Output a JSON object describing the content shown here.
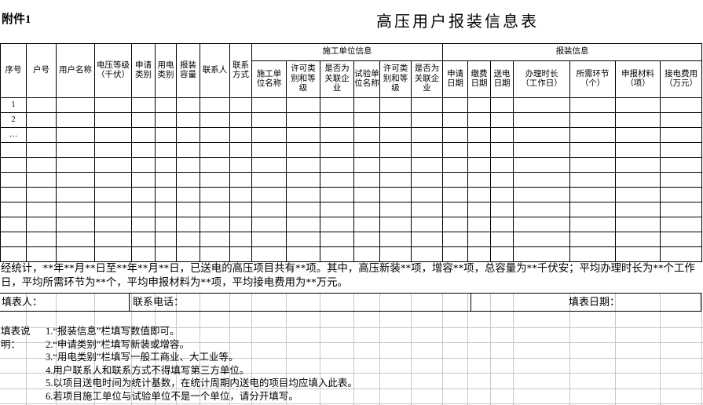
{
  "page": {
    "attachment_label": "附件1",
    "title": "高压用户报装信息表"
  },
  "table": {
    "merged_columns": [
      "序号",
      "户号",
      "用户名称",
      "电压等级\n（千伏）",
      "申请\n类别",
      "用电\n类别",
      "报装\n容量",
      "联系人",
      "联系\n方式"
    ],
    "construction_group": {
      "label": "施工单位信息",
      "columns": [
        "施工单\n位名称",
        "许可类\n别和等\n级",
        "是否为\n关联企\n业",
        "试验单\n位名称",
        "许可类\n别和等\n级",
        "是否为\n关联企\n业"
      ]
    },
    "installation_group": {
      "label": "报装信息",
      "columns": [
        "申请\n日期",
        "缴费\n日期",
        "送电\n日期",
        "办理时长\n（工作日）",
        "所需环节\n（个）",
        "申报材料\n（项）",
        "接电费用\n（万元）"
      ]
    },
    "rows": [
      {
        "index": "1"
      },
      {
        "index": "2"
      },
      {
        "index": "…"
      },
      {
        "index": ""
      },
      {
        "index": ""
      },
      {
        "index": ""
      },
      {
        "index": ""
      },
      {
        "index": ""
      },
      {
        "index": ""
      },
      {
        "index": ""
      },
      {
        "index": ""
      }
    ]
  },
  "summary": {
    "text": "经统计，**年**月**日至**年**月**日，已送电的高压项目共有**项。其中，高压新装**项，增容**项，总容量为**千伏安；平均办理时长为**个工作\n日，平均所需环节为**个，平均申报材料为**项，平均接电费用为**万元。"
  },
  "footer": {
    "filler_label": "填表人：",
    "phone_label": "联系电话：",
    "date_label": "填表日期："
  },
  "notes": {
    "label": "填表说明：",
    "items": [
      "1.“报装信息”栏填写数值即可。",
      "2.“申请类别”栏填写新装或增容。",
      "3.“用电类别”栏填写一般工商业、大工业等。",
      "4.用户联系人和联系方式不得填写第三方单位。",
      "5.以项目送电时间为统计基数，在统计周期内送电的项目均应填入此表。",
      "6.若项目施工单位与试验单位不是一个单位，请分开填写。"
    ]
  }
}
